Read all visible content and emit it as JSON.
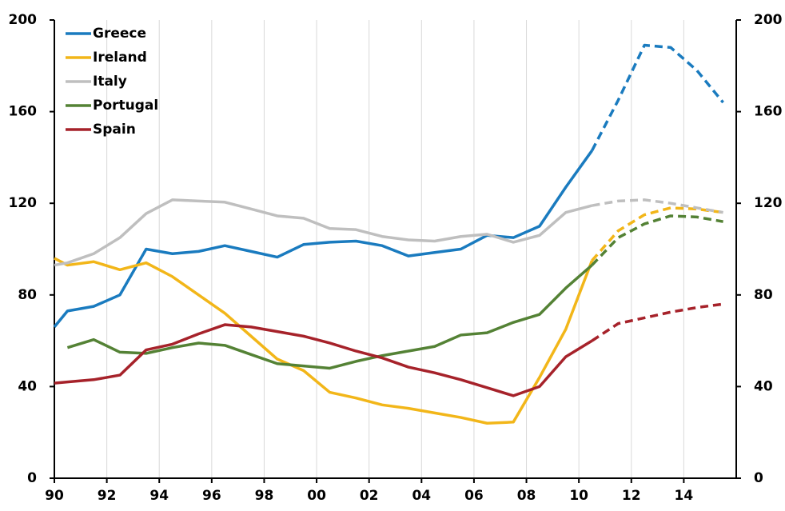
{
  "chart_data": {
    "type": "line",
    "x": [
      1990,
      1990.5,
      1991.5,
      1992.5,
      1993.5,
      1994.5,
      1995.5,
      1996.5,
      1997.5,
      1998.5,
      1999.5,
      2000.5,
      2001.5,
      2002.5,
      2003.5,
      2004.5,
      2005.5,
      2006.5,
      2007.5,
      2008.5,
      2009.5,
      2010.5,
      2011.5,
      2012.5,
      2013.5,
      2014.5,
      2015.5
    ],
    "series": [
      {
        "name": "Greece",
        "color": "#1a7bbf",
        "values": [
          66,
          73,
          75,
          80,
          100,
          98,
          99,
          101.5,
          99,
          96.5,
          102,
          103,
          103.5,
          101.5,
          97,
          98.5,
          100,
          106,
          105,
          110,
          127,
          143,
          165,
          189,
          188,
          178,
          164
        ]
      },
      {
        "name": "Ireland",
        "color": "#f2b619",
        "values": [
          96,
          93,
          94.5,
          91,
          94,
          88,
          80,
          72,
          62,
          52,
          47,
          37.5,
          35,
          32,
          30.5,
          28.5,
          26.5,
          24,
          24.5,
          44,
          65,
          95,
          108,
          115,
          118,
          117.5,
          116
        ]
      },
      {
        "name": "Italy",
        "color": "#bfbfbf",
        "values": [
          93,
          94,
          98,
          105,
          115.5,
          121.5,
          121,
          120.5,
          117.5,
          114.5,
          113.5,
          109,
          108.5,
          105.5,
          104,
          103.5,
          105.5,
          106.5,
          103,
          106,
          116,
          119,
          121,
          121.5,
          120,
          118,
          116
        ]
      },
      {
        "name": "Portugal",
        "color": "#548235",
        "values": [
          null,
          57,
          60.5,
          55,
          54.5,
          57,
          59,
          58,
          54,
          50,
          49,
          48,
          51,
          53.5,
          55.5,
          57.5,
          62.5,
          63.5,
          68,
          71.5,
          83,
          93,
          105,
          111,
          114.5,
          114,
          112
        ]
      },
      {
        "name": "Spain",
        "color": "#a6222a",
        "values": [
          41.5,
          42,
          43,
          45,
          56,
          58.5,
          63,
          67,
          66,
          64,
          62,
          59,
          55.5,
          52.5,
          48.5,
          46,
          43,
          39.5,
          36,
          40,
          53,
          60,
          67.5,
          70,
          72.5,
          74.5,
          76
        ]
      }
    ],
    "dashed_from": 2010.5,
    "xlim": [
      1990,
      2016
    ],
    "xticks": [
      {
        "value": 1990,
        "label": "90"
      },
      {
        "value": 1992,
        "label": "92"
      },
      {
        "value": 1994,
        "label": "94"
      },
      {
        "value": 1996,
        "label": "96"
      },
      {
        "value": 1998,
        "label": "98"
      },
      {
        "value": 2000,
        "label": "00"
      },
      {
        "value": 2002,
        "label": "02"
      },
      {
        "value": 2004,
        "label": "04"
      },
      {
        "value": 2006,
        "label": "06"
      },
      {
        "value": 2008,
        "label": "08"
      },
      {
        "value": 2010,
        "label": "10"
      },
      {
        "value": 2012,
        "label": "12"
      },
      {
        "value": 2014,
        "label": "14"
      }
    ],
    "ylim": [
      0,
      200
    ],
    "yticks": [
      0,
      40,
      80,
      120,
      160,
      200
    ],
    "y2lim": [
      0,
      200
    ],
    "y2ticks": [
      0,
      40,
      80,
      120,
      160,
      200
    ],
    "grid": "x",
    "legend": "upper left"
  }
}
